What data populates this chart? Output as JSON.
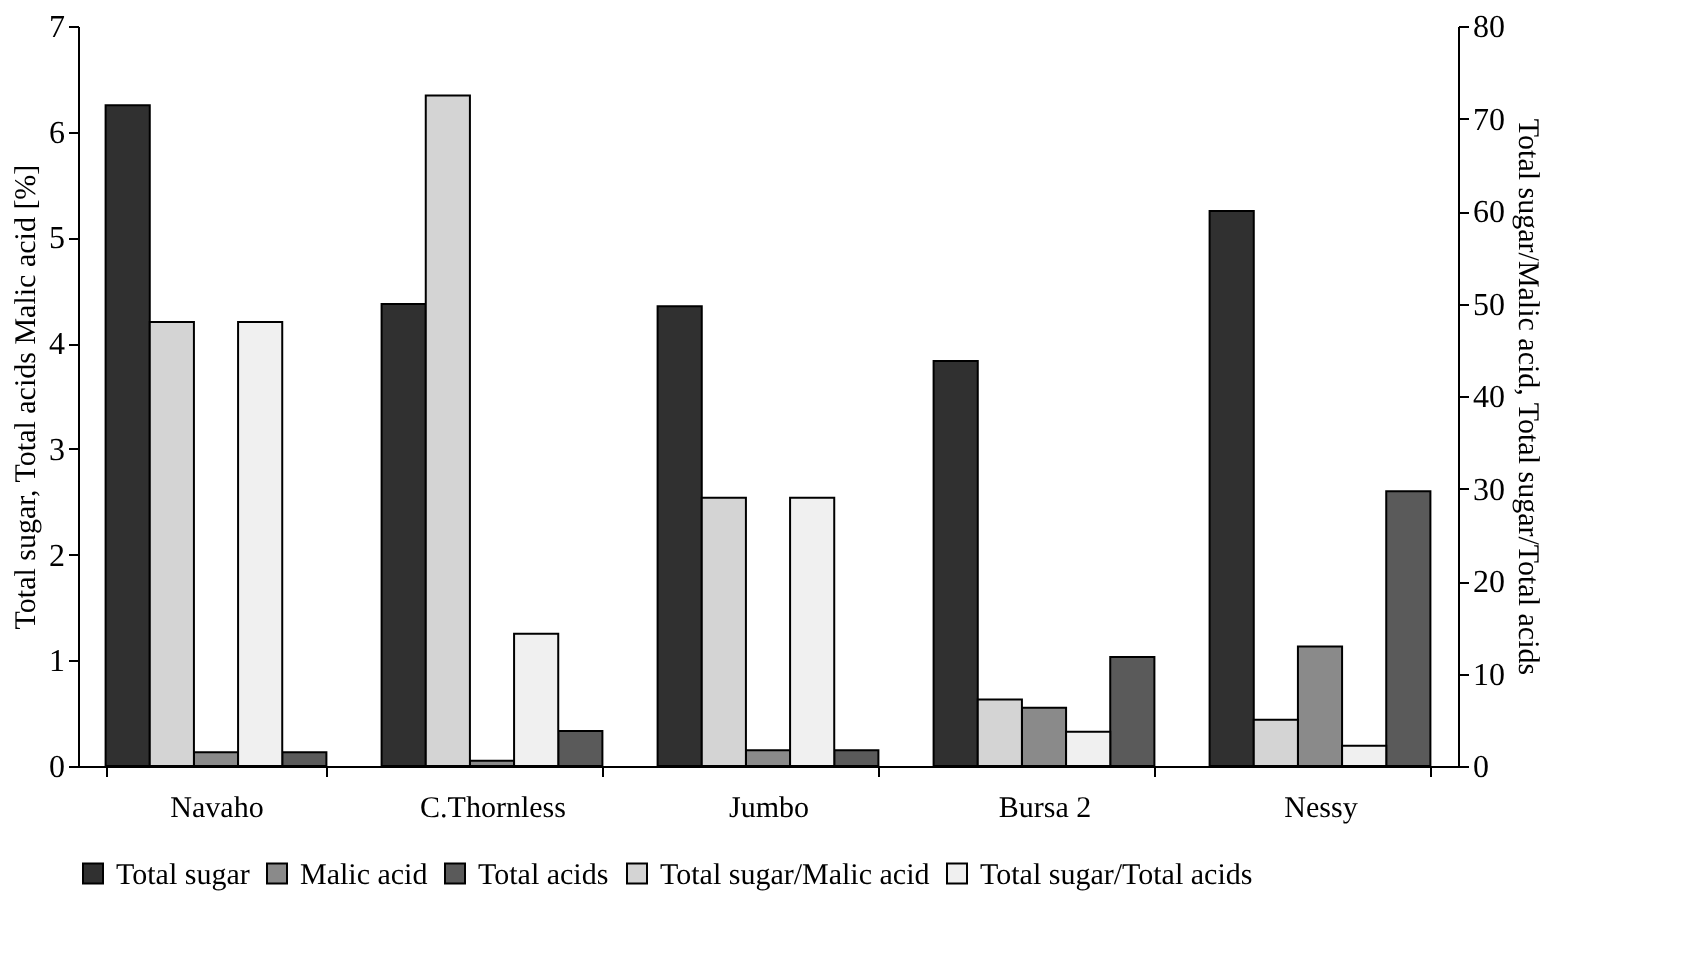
{
  "chart_data": {
    "type": "bar",
    "ylabel": "Total sugar, Total acids Malic acid [%]",
    "y2label": "Total sugar/Malic acid, Total sugar/Total acids",
    "categories": [
      "Navaho",
      "C.Thornless",
      "Jumbo",
      "Bursa 2",
      "Nessy"
    ],
    "series": [
      {
        "name": "Total sugar",
        "color": "#303030",
        "values": [
          6.25,
          4.37,
          4.35,
          3.83,
          5.25
        ]
      },
      {
        "name": "Total sugar/Malic acid",
        "color": "#d4d4d4",
        "axis": "y2",
        "values": [
          48,
          72.5,
          29,
          7.2,
          5
        ]
      },
      {
        "name": "Malic acid",
        "color": "#8a8a8a",
        "values": [
          0.13,
          0.05,
          0.15,
          0.55,
          1.13
        ]
      },
      {
        "name": "Total sugar/Total acids",
        "color": "#f0f0f0",
        "axis": "y2",
        "values": [
          48,
          14.3,
          29,
          3.7,
          2.2
        ]
      },
      {
        "name": "Total acids",
        "color": "#5a5a5a",
        "values": [
          0.13,
          0.33,
          0.15,
          1.03,
          2.6
        ]
      }
    ],
    "ylim": [
      0,
      7
    ],
    "yticks": [
      0,
      1,
      2,
      3,
      4,
      5,
      6,
      7
    ],
    "y2lim": [
      0,
      80
    ],
    "y2ticks": [
      0,
      10,
      20,
      30,
      40,
      50,
      60,
      70,
      80
    ],
    "grid": false,
    "legend": "bottom"
  }
}
